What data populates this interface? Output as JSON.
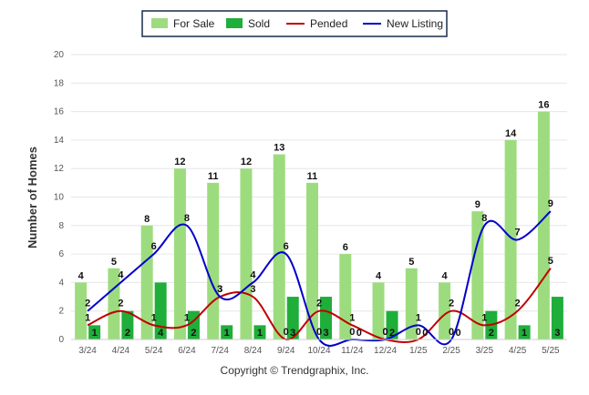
{
  "chart_data": {
    "type": "bar",
    "categories": [
      "3/24",
      "4/24",
      "5/24",
      "6/24",
      "7/24",
      "8/24",
      "9/24",
      "10/24",
      "11/24",
      "12/24",
      "1/25",
      "2/25",
      "3/25",
      "4/25",
      "5/25"
    ],
    "ylabel": "Number of Homes",
    "xlabel": "",
    "ylim": [
      0,
      20
    ],
    "yticks": [
      0,
      2,
      4,
      6,
      8,
      10,
      12,
      14,
      16,
      18,
      20
    ],
    "grid": true,
    "legend_position": "top-center",
    "series": [
      {
        "name": "For Sale",
        "kind": "bar",
        "color": "#9ddc7e",
        "values": [
          4,
          5,
          8,
          12,
          11,
          12,
          13,
          11,
          6,
          4,
          5,
          4,
          9,
          14,
          16
        ]
      },
      {
        "name": "Sold",
        "kind": "bar",
        "color": "#1fae3a",
        "values": [
          1,
          2,
          4,
          2,
          1,
          1,
          3,
          3,
          0,
          2,
          0,
          0,
          2,
          1,
          3
        ]
      },
      {
        "name": "Pended",
        "kind": "line",
        "color": "#c00000",
        "values": [
          1,
          2,
          1,
          1,
          3,
          3,
          0,
          2,
          1,
          0,
          0,
          2,
          1,
          2,
          5
        ]
      },
      {
        "name": "New Listing",
        "kind": "line",
        "color": "#0000cc",
        "values": [
          2,
          4,
          6,
          8,
          3,
          4,
          6,
          0,
          0,
          0,
          1,
          0,
          8,
          7,
          9
        ]
      }
    ]
  },
  "footer": {
    "copyright": "Copyright © Trendgraphix, Inc."
  }
}
